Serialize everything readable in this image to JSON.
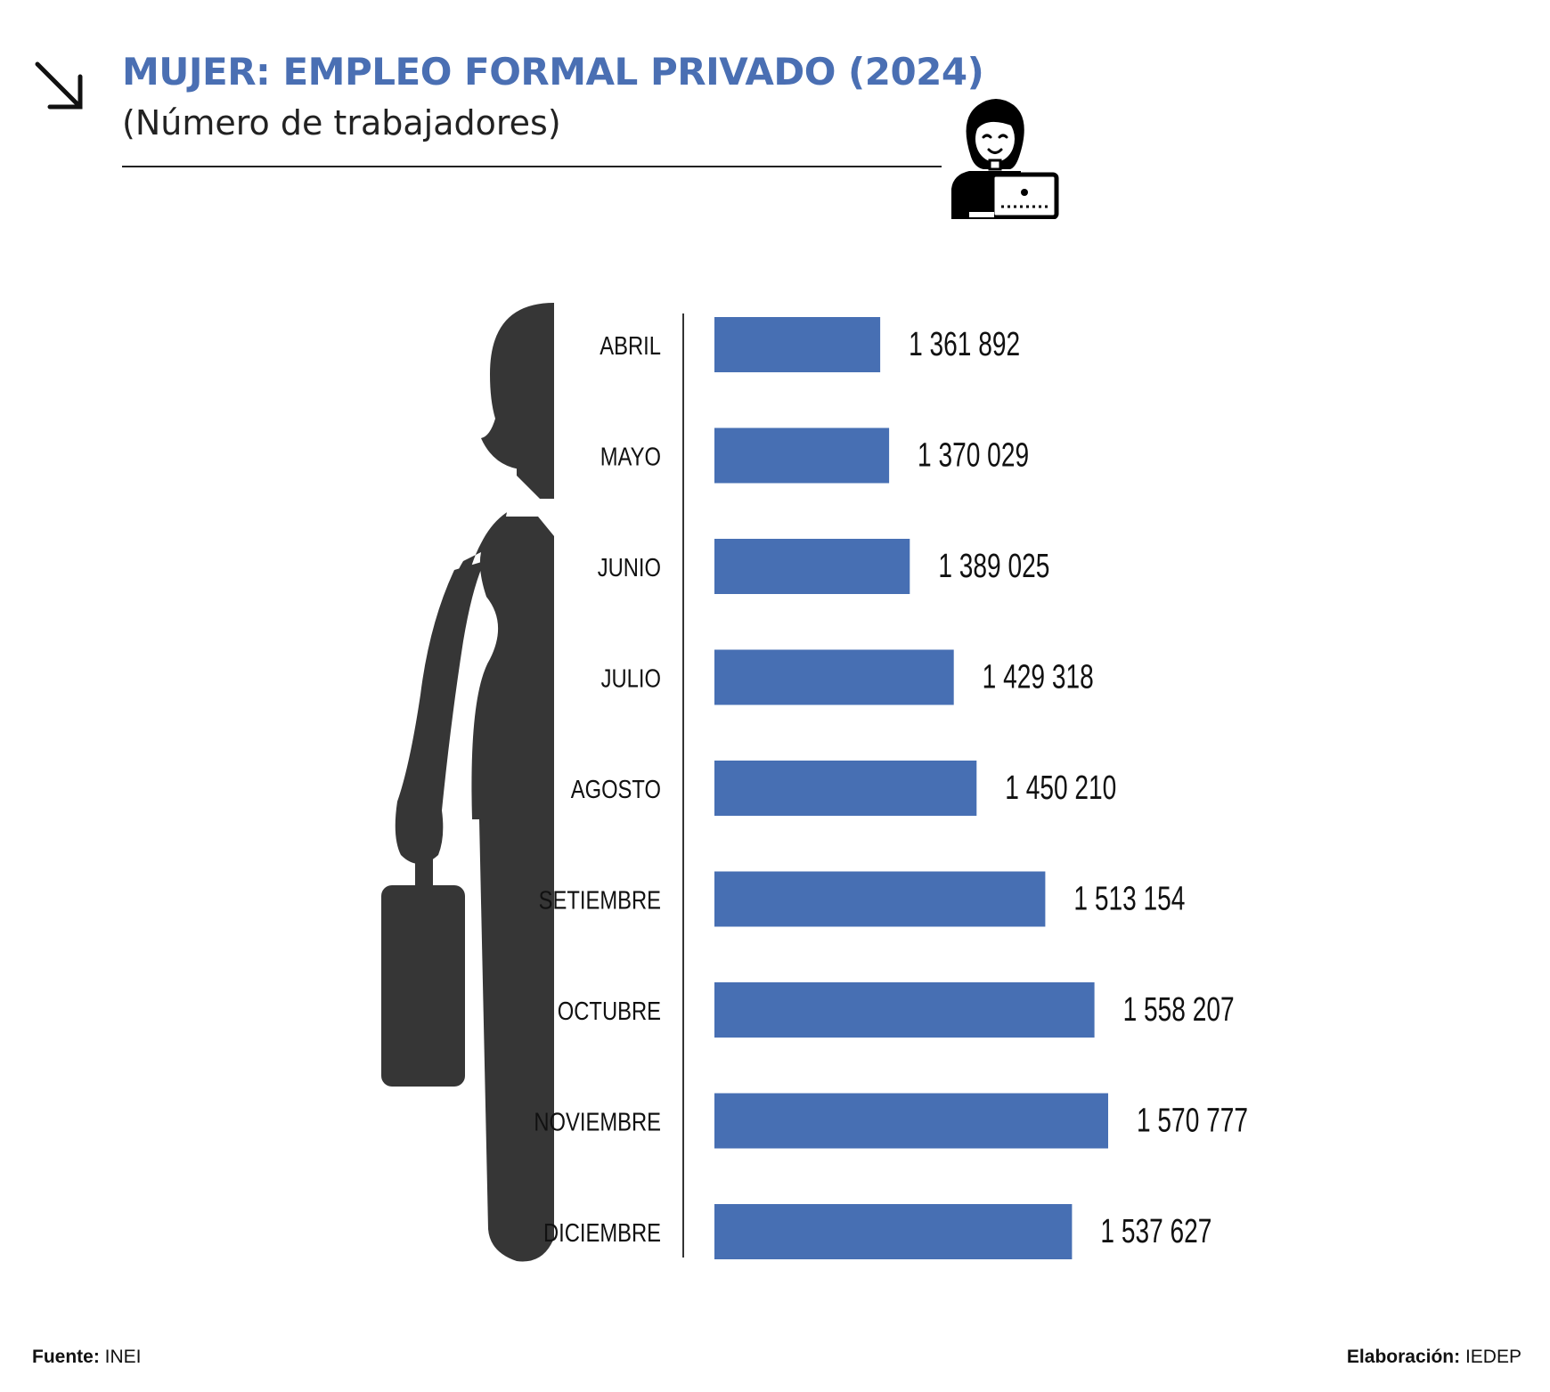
{
  "header": {
    "title": "MUJER: EMPLEO FORMAL PRIVADO (2024)",
    "subtitle": "(Número de trabajadores)"
  },
  "icons": {
    "arrow": "arrow-down-right-icon",
    "office_worker": "woman-at-computer-icon",
    "silhouette": "businesswoman-silhouette-icon"
  },
  "colors": {
    "accent": "#4a6fb3",
    "bar": "#476fb3",
    "silhouette": "#363636"
  },
  "chart_data": {
    "type": "bar",
    "orientation": "horizontal",
    "categories": [
      "ABRIL",
      "MAYO",
      "JUNIO",
      "JULIO",
      "AGOSTO",
      "SETIEMBRE",
      "OCTUBRE",
      "NOVIEMBRE",
      "DICIEMBRE"
    ],
    "values": [
      1361892,
      1370029,
      1389025,
      1429318,
      1450210,
      1513154,
      1558207,
      1570777,
      1537627
    ],
    "value_labels": [
      "1 361 892",
      "1 370 029",
      "1 389 025",
      "1 429 318",
      "1 450 210",
      "1 513 154",
      "1 558 207",
      "1 570 777",
      "1 537 627"
    ],
    "title": "MUJER: EMPLEO FORMAL PRIVADO (2024)",
    "subtitle": "(Número de trabajadores)",
    "xlim": [
      1210000,
      1620000
    ],
    "grid": false,
    "legend": "none"
  },
  "footer": {
    "source_label": "Fuente:",
    "source_value": "INEI",
    "credit_label": "Elaboración:",
    "credit_value": "IEDEP"
  }
}
